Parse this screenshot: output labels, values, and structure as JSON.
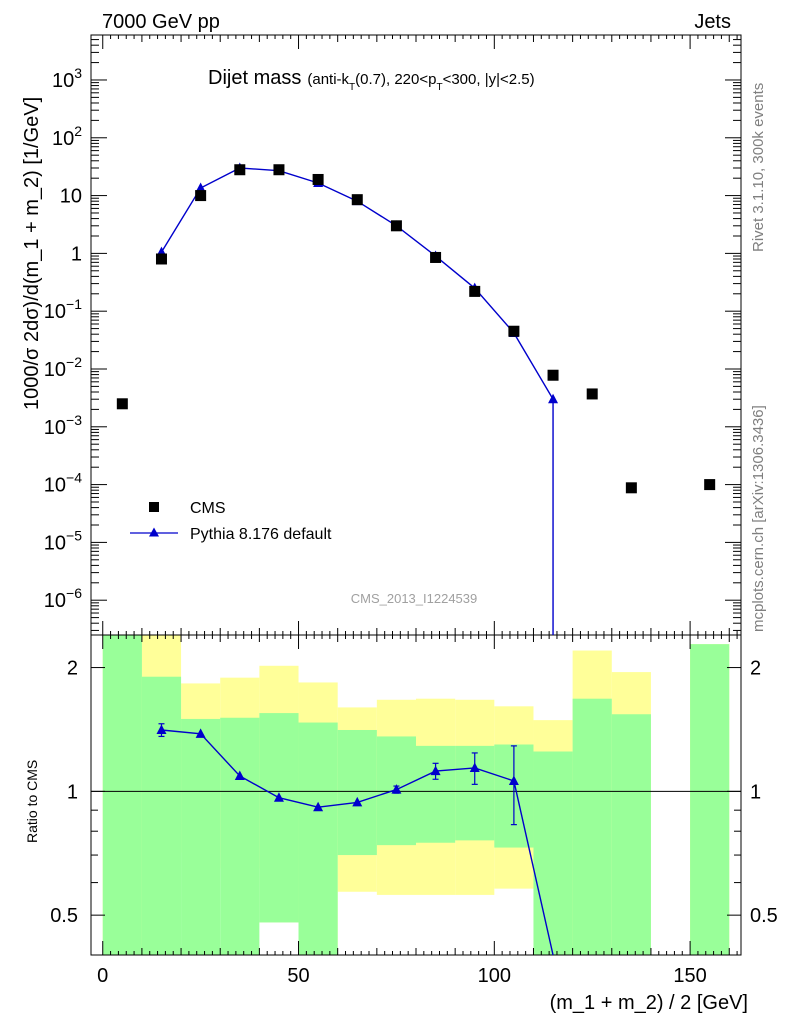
{
  "header": {
    "left": "7000 GeV pp",
    "right": "Jets"
  },
  "side_labels": {
    "rivet": "Rivet 3.1.10,  300k events",
    "mcplots": "mcplots.cern.ch [arXiv:1306.3436]"
  },
  "title": {
    "main": "Dijet mass",
    "sub_a": "(anti-k",
    "sub_b": "T",
    "sub_c": "(0.7), 220<p",
    "sub_d": "T",
    "sub_e": "<300, |y|<2.5)"
  },
  "watermark": "CMS_2013_I1224539",
  "legend": {
    "data": "CMS",
    "mc": "Pythia 8.176 default"
  },
  "colors": {
    "mc": "#0000cc",
    "data": "#000000",
    "band_green": "#99ff99",
    "band_yellow": "#ffff99"
  },
  "axes": {
    "top_ylabel": "1000/σ 2dσ)/d(m_1 + m_2) [1/GeV]",
    "bottom_ylabel": "Ratio to CMS",
    "xlabel": "(m_1 + m_2) / 2 [GeV]",
    "x_ticks": [
      "0",
      "50",
      "100",
      "150"
    ],
    "ratio_ticks": [
      "0.5",
      "1",
      "2"
    ],
    "top_ticks": [
      {
        "base": "10",
        "exp": "3",
        "v": 1000
      },
      {
        "base": "10",
        "exp": "2",
        "v": 100
      },
      {
        "base": "10",
        "exp": "",
        "v": 10
      },
      {
        "base": "1",
        "exp": "",
        "v": 1
      },
      {
        "base": "10",
        "exp": "−1",
        "v": 0.1
      },
      {
        "base": "10",
        "exp": "−2",
        "v": 0.01
      },
      {
        "base": "10",
        "exp": "−3",
        "v": 0.001
      },
      {
        "base": "10",
        "exp": "−4",
        "v": 0.0001
      },
      {
        "base": "10",
        "exp": "−5",
        "v": 1e-05
      },
      {
        "base": "10",
        "exp": "−6",
        "v": 1e-06
      }
    ]
  },
  "chart_data": {
    "type": "line",
    "x_range": [
      -3,
      163
    ],
    "y_range_log": [
      2.5e-07,
      6000
    ],
    "ratio_range_log": [
      0.4,
      2.4
    ],
    "bins": [
      {
        "lo": 0,
        "hi": 10,
        "x": 5,
        "cms": 0.0025,
        "mc": null,
        "green": [
          0.4,
          2.4
        ],
        "yellow": [
          0.4,
          2.4
        ]
      },
      {
        "lo": 10,
        "hi": 20,
        "x": 15,
        "cms": 0.8,
        "mc": 1.05,
        "green": [
          0.4,
          1.9
        ],
        "yellow": [
          0.4,
          2.4
        ]
      },
      {
        "lo": 20,
        "hi": 30,
        "x": 25,
        "cms": 10,
        "mc": 13.5,
        "green": [
          0.4,
          1.5
        ],
        "yellow": [
          0.71,
          1.83
        ]
      },
      {
        "lo": 30,
        "hi": 40,
        "x": 35,
        "cms": 28,
        "mc": 30,
        "green": [
          0.4,
          1.51
        ],
        "yellow": [
          0.65,
          1.89
        ]
      },
      {
        "lo": 40,
        "hi": 50,
        "x": 45,
        "cms": 28,
        "mc": 27,
        "green": [
          0.48,
          1.55
        ],
        "yellow": [
          0.48,
          2.02
        ]
      },
      {
        "lo": 50,
        "hi": 60,
        "x": 55,
        "cms": 19,
        "mc": 16.5,
        "green": [
          0.4,
          1.47
        ],
        "yellow": [
          0.4,
          1.84
        ]
      },
      {
        "lo": 60,
        "hi": 70,
        "x": 65,
        "cms": 8.5,
        "mc": 8,
        "green": [
          0.7,
          1.41
        ],
        "yellow": [
          0.57,
          1.6
        ]
      },
      {
        "lo": 70,
        "hi": 80,
        "x": 75,
        "cms": 3,
        "mc": 3,
        "green": [
          0.74,
          1.36
        ],
        "yellow": [
          0.56,
          1.67
        ]
      },
      {
        "lo": 80,
        "hi": 90,
        "x": 85,
        "cms": 0.85,
        "mc": 0.9,
        "green": [
          0.75,
          1.29
        ],
        "yellow": [
          0.56,
          1.68
        ]
      },
      {
        "lo": 90,
        "hi": 100,
        "x": 95,
        "cms": 0.22,
        "mc": 0.25,
        "green": [
          0.76,
          1.29
        ],
        "yellow": [
          0.56,
          1.67
        ]
      },
      {
        "lo": 100,
        "hi": 110,
        "x": 105,
        "cms": 0.045,
        "mc": 0.042,
        "green": [
          0.73,
          1.3
        ],
        "yellow": [
          0.58,
          1.61
        ]
      },
      {
        "lo": 110,
        "hi": 120,
        "x": 115,
        "cms": 0.0078,
        "mc": 0.003,
        "green": [
          0.4,
          1.25
        ],
        "yellow": [
          0.4,
          1.49
        ]
      },
      {
        "lo": 120,
        "hi": 130,
        "x": 125,
        "cms": 0.0037,
        "mc": null,
        "green": [
          0.4,
          1.68
        ],
        "yellow": [
          0.4,
          2.2
        ]
      },
      {
        "lo": 130,
        "hi": 140,
        "x": 135,
        "cms": 8.8e-05,
        "mc": null,
        "green": [
          0.4,
          1.54
        ],
        "yellow": [
          0.4,
          1.95
        ]
      },
      {
        "lo": 150,
        "hi": 160,
        "x": 155,
        "cms": 0.0001,
        "mc": null,
        "green": [
          0.4,
          2.28
        ],
        "yellow": [
          0.4,
          2.28
        ]
      }
    ],
    "mc_curve": [
      {
        "x": 15,
        "y": 1.05
      },
      {
        "x": 25,
        "y": 13.5
      },
      {
        "x": 35,
        "y": 30
      },
      {
        "x": 45,
        "y": 27
      },
      {
        "x": 55,
        "y": 16.5
      },
      {
        "x": 65,
        "y": 8
      },
      {
        "x": 75,
        "y": 3
      },
      {
        "x": 85,
        "y": 0.9
      },
      {
        "x": 95,
        "y": 0.25
      },
      {
        "x": 105,
        "y": 0.042
      },
      {
        "x": 115,
        "y": 0.003
      },
      {
        "x": 115,
        "y": 2.5e-07
      }
    ],
    "ratio_points": [
      {
        "x": 15,
        "y": 1.41,
        "err": 0.05
      },
      {
        "x": 25,
        "y": 1.38,
        "err": 0
      },
      {
        "x": 35,
        "y": 1.09,
        "err": 0
      },
      {
        "x": 45,
        "y": 0.965,
        "err": 0
      },
      {
        "x": 55,
        "y": 0.915,
        "err": 0
      },
      {
        "x": 65,
        "y": 0.94,
        "err": 0
      },
      {
        "x": 75,
        "y": 1.01,
        "err": 0.02
      },
      {
        "x": 85,
        "y": 1.12,
        "err": 0.05
      },
      {
        "x": 95,
        "y": 1.14,
        "err": 0.1
      },
      {
        "x": 105,
        "y": 1.06,
        "err": 0.23
      }
    ],
    "ratio_curve_end": {
      "x": 115,
      "y": 0.4
    }
  }
}
